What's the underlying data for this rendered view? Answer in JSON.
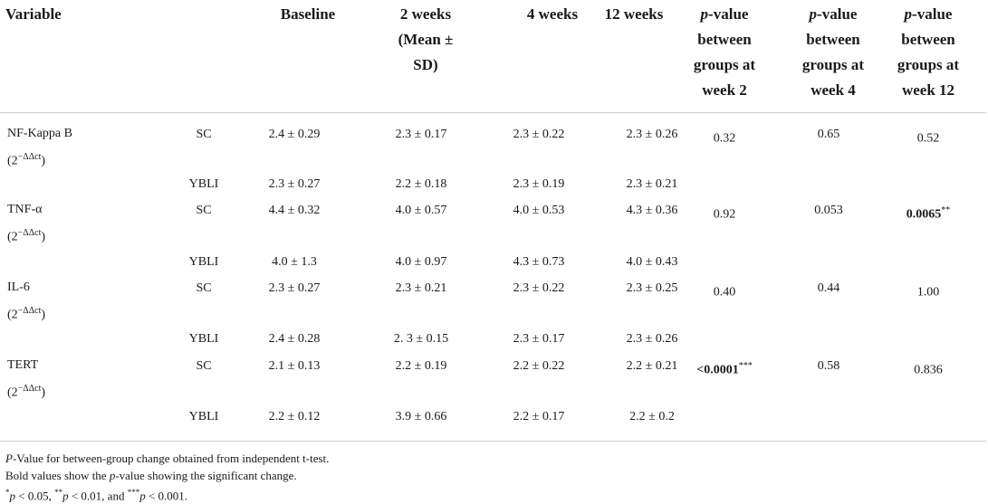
{
  "header": {
    "variable": "Variable",
    "baseline": "Baseline",
    "week2": [
      "2 weeks",
      "(Mean ±",
      "SD)"
    ],
    "week4": "4 weeks",
    "week12": "12 weeks",
    "p2": [
      "value",
      "between",
      "groups at",
      "week 2"
    ],
    "p4": [
      "value",
      "between",
      "groups at",
      "week 4"
    ],
    "p12": [
      "value",
      "between",
      "groups at",
      "week 12"
    ],
    "p_prefix": "p-"
  },
  "rows": [
    {
      "variable": "NF-Kappa B",
      "unit_base": "(2",
      "unit_exp": "−ΔΔct",
      "unit_close": ")",
      "sc": {
        "group": "SC",
        "baseline": "2.4 ± 0.29",
        "w2": "2.3 ± 0.17",
        "w4": "2.3 ± 0.22",
        "w12": "2.3 ± 0.26"
      },
      "ybli": {
        "group": "YBLI",
        "baseline": "2.3 ± 0.27",
        "w2": "2.2 ± 0.18",
        "w4": "2.3 ± 0.19",
        "w12": "2.3 ± 0.21"
      },
      "p2": "0.32",
      "p2_sig": "",
      "p4": "0.65",
      "p12": "0.52",
      "p12_sig": ""
    },
    {
      "variable": "TNF-α",
      "unit_base": "(2",
      "unit_exp": "−ΔΔct",
      "unit_close": ")",
      "sc": {
        "group": "SC",
        "baseline": "4.4 ± 0.32",
        "w2": "4.0 ± 0.57",
        "w4": "4.0 ± 0.53",
        "w12": "4.3 ± 0.36"
      },
      "ybli": {
        "group": "YBLI",
        "baseline": "4.0 ± 1.3",
        "w2": "4.0 ± 0.97",
        "w4": "4.3 ± 0.73",
        "w12": "4.0 ± 0.43"
      },
      "p2": "0.92",
      "p2_sig": "",
      "p4": "0.053",
      "p12": "0.0065",
      "p12_sig": "**"
    },
    {
      "variable": "IL-6",
      "unit_base": "(2",
      "unit_exp": "−ΔΔct",
      "unit_close": ")",
      "sc": {
        "group": "SC",
        "baseline": "2.3 ± 0.27",
        "w2": "2.3 ± 0.21",
        "w4": "2.3 ± 0.22",
        "w12": "2.3 ± 0.25"
      },
      "ybli": {
        "group": "YBLI",
        "baseline": "2.4 ± 0.28",
        "w2": "2. 3 ± 0.15",
        "w4": "2.3 ± 0.17",
        "w12": "2.3 ± 0.26"
      },
      "p2": "0.40",
      "p2_sig": "",
      "p4": "0.44",
      "p12": "1.00",
      "p12_sig": ""
    },
    {
      "variable": "TERT",
      "unit_base": "(2",
      "unit_exp": "−ΔΔct",
      "unit_close": ")",
      "sc": {
        "group": "SC",
        "baseline": "2.1 ± 0.13",
        "w2": "2.2 ± 0.19",
        "w4": "2.2 ± 0.22",
        "w12": "2.2 ± 0.21"
      },
      "ybli": {
        "group": "YBLI",
        "baseline": "2.2 ± 0.12",
        "w2": "3.9 ± 0.66",
        "w4": "2.2 ± 0.17",
        "w12": "2.2 ± 0.2"
      },
      "p2": "<0.0001",
      "p2_sig": "***",
      "p4": "0.58",
      "p12": "0.836",
      "p12_sig": ""
    }
  ],
  "footnotes": {
    "line1_italic": "P",
    "line1_rest": "-Value for between-group change obtained from independent t-test.",
    "line2_a": "Bold values show the ",
    "line2_italic": "p",
    "line2_b": "-value showing the significant change.",
    "line3": [
      {
        "sup": "*",
        "p": "p",
        "text": " < 0.05, "
      },
      {
        "sup": "**",
        "p": "p",
        "text": " < 0.01, and "
      },
      {
        "sup": "***",
        "p": "p",
        "text": " < 0.001."
      }
    ]
  }
}
